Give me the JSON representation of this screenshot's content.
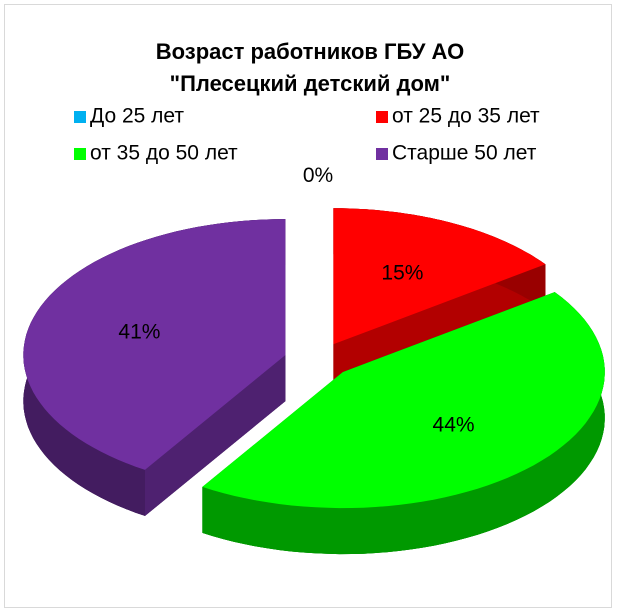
{
  "chart_data": {
    "type": "pie",
    "title": "Возраст работников ГБУ АО \"Плесецкий детский дом\"",
    "categories": [
      "До 25 лет",
      "от 25 до 35 лет",
      "от 35 до 50 лет",
      "Старше 50 лет"
    ],
    "values": [
      0,
      15,
      44,
      41
    ],
    "value_labels": [
      "0%",
      "15%",
      "44%",
      "41%"
    ],
    "colors": [
      "#00b0f0",
      "#ff0000",
      "#00ff00",
      "#7030a0"
    ],
    "legend": "top"
  }
}
